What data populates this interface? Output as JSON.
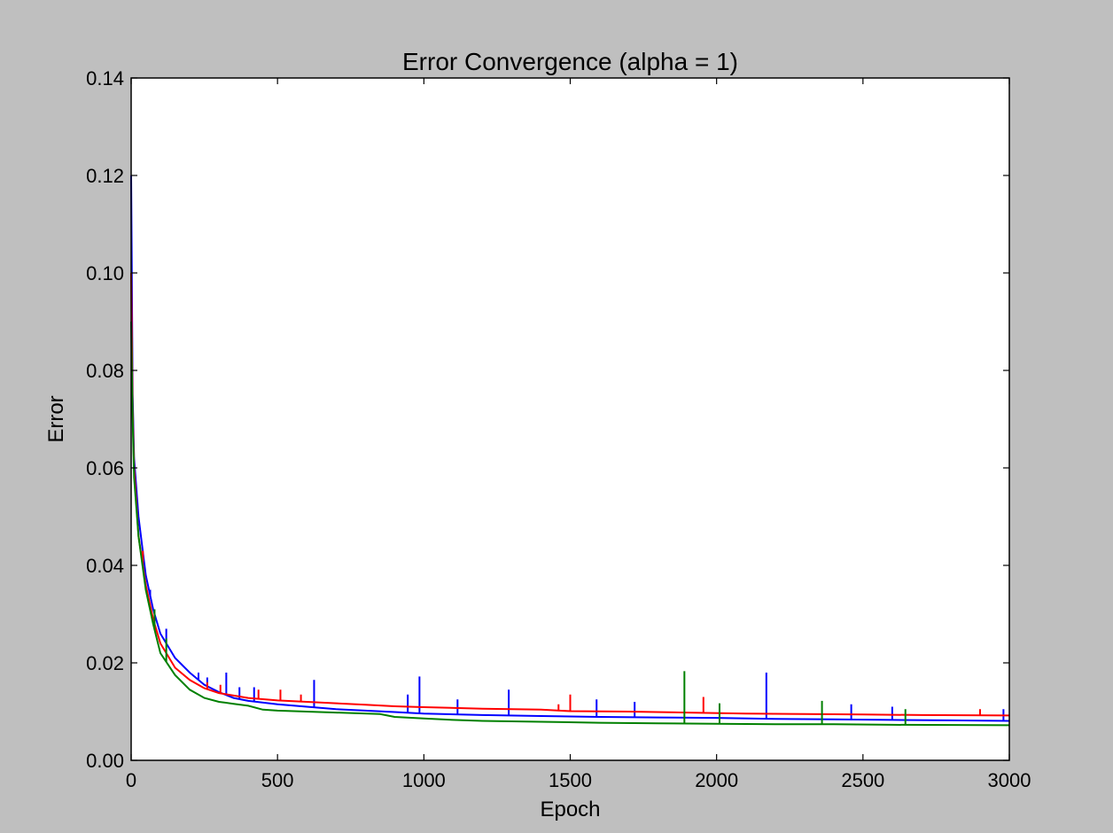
{
  "chart_data": {
    "type": "line",
    "title": "Error Convergence (alpha = 1)",
    "xlabel": "Epoch",
    "ylabel": "Error",
    "xlim": [
      0,
      3000
    ],
    "ylim": [
      0,
      0.14
    ],
    "xticks": [
      0,
      500,
      1000,
      1500,
      2000,
      2500,
      3000
    ],
    "yticks": [
      0.0,
      0.02,
      0.04,
      0.06,
      0.08,
      0.1,
      0.12,
      0.14
    ],
    "ytick_labels": [
      "0.00",
      "0.02",
      "0.04",
      "0.06",
      "0.08",
      "0.10",
      "0.12",
      "0.14"
    ],
    "xtick_labels": [
      "0",
      "500",
      "1000",
      "1500",
      "2000",
      "2500",
      "3000"
    ],
    "grid": false,
    "legend": "none",
    "series": [
      {
        "color": "#0000ff",
        "points": [
          [
            0,
            0.12
          ],
          [
            5,
            0.075
          ],
          [
            10,
            0.062
          ],
          [
            25,
            0.05
          ],
          [
            50,
            0.038
          ],
          [
            75,
            0.031
          ],
          [
            100,
            0.026
          ],
          [
            150,
            0.021
          ],
          [
            200,
            0.018
          ],
          [
            250,
            0.0155
          ],
          [
            300,
            0.014
          ],
          [
            350,
            0.0128
          ],
          [
            400,
            0.0122
          ],
          [
            500,
            0.0115
          ],
          [
            600,
            0.011
          ],
          [
            700,
            0.0105
          ],
          [
            800,
            0.0102
          ],
          [
            900,
            0.0099
          ],
          [
            1000,
            0.0096
          ],
          [
            1200,
            0.0093
          ],
          [
            1400,
            0.0091
          ],
          [
            1600,
            0.0089
          ],
          [
            1800,
            0.0088
          ],
          [
            2000,
            0.0087
          ],
          [
            2200,
            0.0085
          ],
          [
            2400,
            0.0084
          ],
          [
            2600,
            0.0083
          ],
          [
            2800,
            0.0082
          ],
          [
            3000,
            0.0081
          ]
        ],
        "spikes": [
          [
            65,
            0.035
          ],
          [
            90,
            0.028
          ],
          [
            120,
            0.027
          ],
          [
            230,
            0.018
          ],
          [
            260,
            0.017
          ],
          [
            325,
            0.018
          ],
          [
            370,
            0.015
          ],
          [
            420,
            0.015
          ],
          [
            625,
            0.0165
          ],
          [
            945,
            0.0135
          ],
          [
            985,
            0.0172
          ],
          [
            1115,
            0.0125
          ],
          [
            1290,
            0.0145
          ],
          [
            1590,
            0.0125
          ],
          [
            1720,
            0.012
          ],
          [
            2170,
            0.018
          ],
          [
            2460,
            0.0115
          ],
          [
            2600,
            0.011
          ],
          [
            2980,
            0.0105
          ]
        ]
      },
      {
        "color": "#ff0000",
        "points": [
          [
            0,
            0.1
          ],
          [
            5,
            0.072
          ],
          [
            10,
            0.06
          ],
          [
            25,
            0.046
          ],
          [
            50,
            0.036
          ],
          [
            75,
            0.029
          ],
          [
            100,
            0.024
          ],
          [
            150,
            0.019
          ],
          [
            200,
            0.0165
          ],
          [
            250,
            0.0148
          ],
          [
            300,
            0.0138
          ],
          [
            400,
            0.0128
          ],
          [
            500,
            0.0123
          ],
          [
            600,
            0.012
          ],
          [
            700,
            0.0117
          ],
          [
            800,
            0.0114
          ],
          [
            900,
            0.0111
          ],
          [
            1000,
            0.0109
          ],
          [
            1200,
            0.0106
          ],
          [
            1400,
            0.0104
          ],
          [
            1500,
            0.0101
          ],
          [
            1700,
            0.01
          ],
          [
            1900,
            0.0098
          ],
          [
            2100,
            0.0096
          ],
          [
            2300,
            0.0095
          ],
          [
            2500,
            0.0094
          ],
          [
            2700,
            0.0093
          ],
          [
            3000,
            0.0092
          ]
        ],
        "spikes": [
          [
            40,
            0.043
          ],
          [
            200,
            0.0165
          ],
          [
            260,
            0.016
          ],
          [
            305,
            0.0155
          ],
          [
            435,
            0.0145
          ],
          [
            510,
            0.0145
          ],
          [
            580,
            0.0135
          ],
          [
            1460,
            0.0115
          ],
          [
            1500,
            0.0135
          ],
          [
            1955,
            0.013
          ],
          [
            2900,
            0.0105
          ]
        ]
      },
      {
        "color": "#008000",
        "points": [
          [
            0,
            0.09
          ],
          [
            5,
            0.07
          ],
          [
            10,
            0.058
          ],
          [
            25,
            0.046
          ],
          [
            50,
            0.035
          ],
          [
            75,
            0.028
          ],
          [
            100,
            0.022
          ],
          [
            150,
            0.0175
          ],
          [
            200,
            0.0145
          ],
          [
            250,
            0.0128
          ],
          [
            300,
            0.012
          ],
          [
            350,
            0.0116
          ],
          [
            400,
            0.0112
          ],
          [
            450,
            0.0104
          ],
          [
            500,
            0.0102
          ],
          [
            700,
            0.0098
          ],
          [
            850,
            0.0095
          ],
          [
            900,
            0.0089
          ],
          [
            1000,
            0.0086
          ],
          [
            1100,
            0.0083
          ],
          [
            1200,
            0.0081
          ],
          [
            1400,
            0.0079
          ],
          [
            1600,
            0.0077
          ],
          [
            1800,
            0.0076
          ],
          [
            2000,
            0.0075
          ],
          [
            2200,
            0.0074
          ],
          [
            2400,
            0.0074
          ],
          [
            2600,
            0.0073
          ],
          [
            3000,
            0.0072
          ]
        ],
        "spikes": [
          [
            80,
            0.031
          ],
          [
            120,
            0.025
          ],
          [
            1890,
            0.0183
          ],
          [
            2010,
            0.0117
          ],
          [
            2360,
            0.0122
          ],
          [
            2645,
            0.0105
          ]
        ]
      }
    ]
  }
}
